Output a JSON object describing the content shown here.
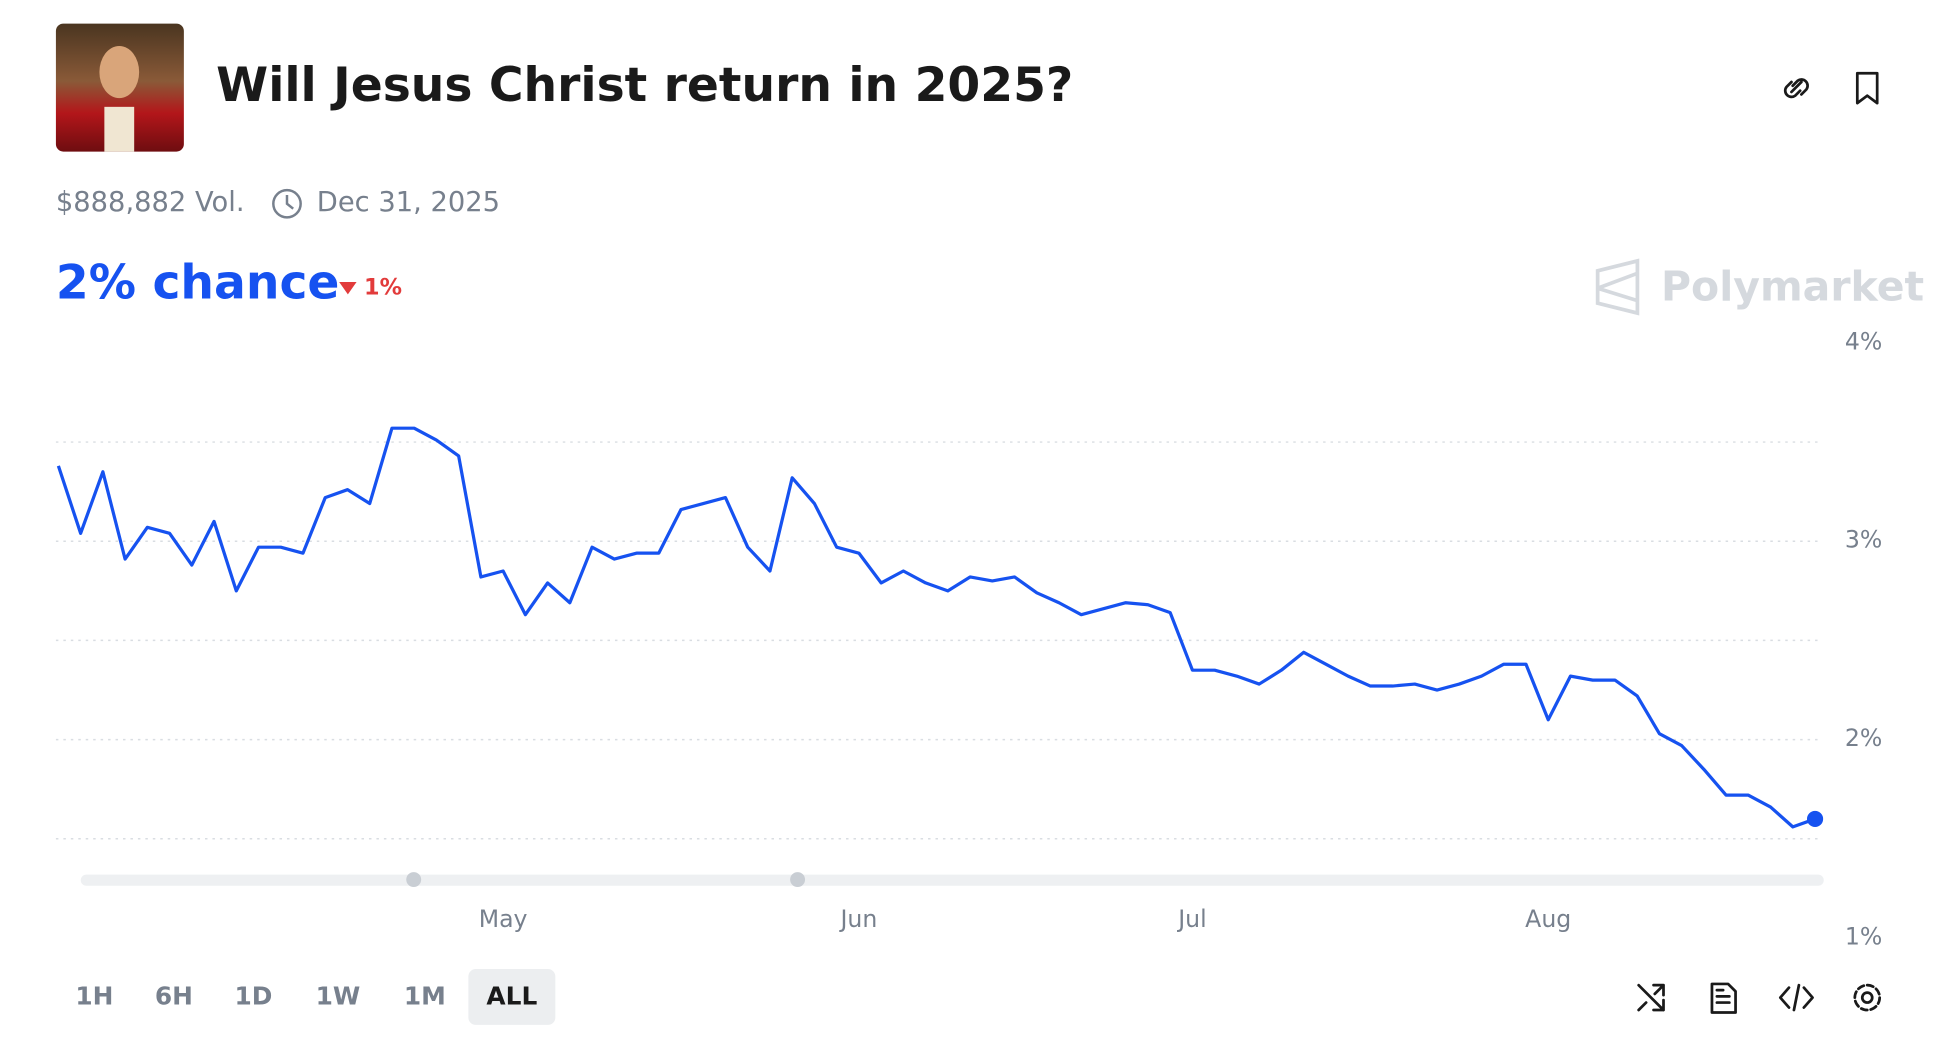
{
  "header": {
    "title": "Will Jesus Christ return in 2025?",
    "volume": "$888,882 Vol.",
    "end_date": "Dec 31, 2025"
  },
  "chance": {
    "label": "2% chance",
    "change": "1%"
  },
  "brand": "Polymarket",
  "timeframes": [
    "1H",
    "6H",
    "1D",
    "1W",
    "1M",
    "ALL"
  ],
  "chart_data": {
    "type": "line",
    "categories": [
      null,
      null,
      null,
      null,
      null,
      null,
      null,
      null,
      null,
      null,
      null,
      null,
      null,
      null,
      null,
      null,
      null,
      null,
      null,
      null,
      "May",
      null,
      null,
      null,
      null,
      null,
      null,
      null,
      null,
      null,
      null,
      null,
      null,
      null,
      null,
      null,
      "Jun",
      null,
      null,
      null,
      null,
      null,
      null,
      null,
      null,
      null,
      null,
      null,
      null,
      null,
      null,
      "Jul",
      null,
      null,
      null,
      null,
      null,
      null,
      null,
      null,
      null,
      null,
      null,
      null,
      null,
      null,
      null,
      "Aug",
      null,
      null,
      null,
      null,
      null,
      null,
      null,
      null,
      null,
      null,
      null,
      null
    ],
    "series": [
      {
        "color": "#1652f0",
        "values": [
          3.38,
          3.04,
          3.35,
          2.91,
          3.07,
          3.04,
          2.88,
          3.1,
          2.75,
          2.97,
          2.97,
          2.94,
          3.22,
          3.26,
          3.19,
          3.57,
          3.57,
          3.51,
          3.43,
          2.82,
          2.85,
          2.63,
          2.79,
          2.69,
          2.97,
          2.91,
          2.94,
          2.94,
          3.16,
          3.19,
          3.22,
          2.97,
          2.85,
          3.32,
          3.19,
          2.97,
          2.94,
          2.79,
          2.85,
          2.79,
          2.75,
          2.82,
          2.8,
          2.82,
          2.74,
          2.69,
          2.63,
          2.66,
          2.69,
          2.68,
          2.64,
          2.35,
          2.35,
          2.32,
          2.28,
          2.35,
          2.44,
          2.38,
          2.32,
          2.27,
          2.27,
          2.28,
          2.25,
          2.28,
          2.32,
          2.38,
          2.38,
          2.1,
          2.32,
          2.3,
          2.3,
          2.22,
          2.03,
          1.97,
          1.85,
          1.72,
          1.72,
          1.66,
          1.56,
          1.6
        ]
      }
    ],
    "ylim": [
      1,
      4
    ],
    "yticks": [
      {
        "value": 1,
        "label": "1%"
      },
      {
        "value": 2,
        "label": "2%"
      },
      {
        "value": 3,
        "label": "3%"
      },
      {
        "value": 4,
        "label": "4%"
      }
    ],
    "gridlines": [
      1.5,
      2,
      2.5,
      3,
      3.5
    ]
  }
}
